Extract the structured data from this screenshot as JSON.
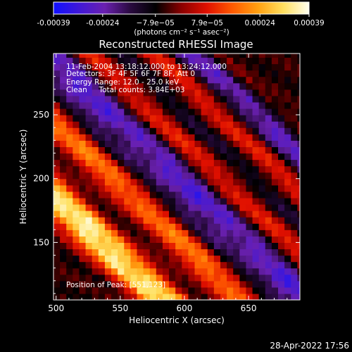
{
  "chart_data": {
    "type": "heatmap",
    "title": "Reconstructed RHESSI Image",
    "xlabel": "Heliocentric X (arcsec)",
    "ylabel": "Heliocentric Y (arcsec)",
    "xlim": [
      498,
      690
    ],
    "ylim": [
      105,
      298
    ],
    "x_ticks": [
      500,
      550,
      600,
      650
    ],
    "y_ticks": [
      150,
      200,
      250
    ],
    "colorbar": {
      "range": [
        -0.00039,
        0.00039
      ],
      "ticks": [
        -0.00039,
        -0.00024,
        -7.9e-05,
        7.9e-05,
        0.00024,
        0.00039
      ],
      "tick_labels": [
        "-0.00039",
        "-0.00024",
        "−7.9e−05",
        "7.9e−05",
        "0.00024",
        "0.00039"
      ],
      "units": "(photons cm⁻² s⁻¹ asec⁻²)",
      "colors": [
        "#1010ff",
        "#4018d8",
        "#6a20b0",
        "#2a0a40",
        "#000000",
        "#8a0000",
        "#e01000",
        "#ff5a00",
        "#ffa010",
        "#ffe060",
        "#fffff0"
      ]
    },
    "annotations": [
      "11-Feb-2004 13:18:12.000 to 13:24:12.000",
      "Detectors: 3F 4F 5F 6F 7F 8F, Att 0",
      "Energy Range: 12.0 - 25.0 keV",
      "Clean     Total counts: 3.84E+03"
    ],
    "position_label": "Position of Peak:",
    "peak_position": "[551,123]",
    "peak": {
      "x": 551,
      "y": 123
    },
    "bands": [
      {
        "center_offset": -115,
        "value": 0.0003
      },
      {
        "center_offset": -82,
        "value": -5e-05
      },
      {
        "center_offset": -55,
        "value": 0.00018
      },
      {
        "center_offset": -25,
        "value": -0.00016
      },
      {
        "center_offset": 0,
        "value": -0.00028
      },
      {
        "center_offset": 28,
        "value": 0.0001
      },
      {
        "center_offset": 55,
        "value": -0.00014
      },
      {
        "center_offset": 80,
        "value": 0.00012
      },
      {
        "center_offset": 105,
        "value": -0.00024
      }
    ]
  },
  "footer": {
    "timestamp": "28-Apr-2022 17:56"
  }
}
